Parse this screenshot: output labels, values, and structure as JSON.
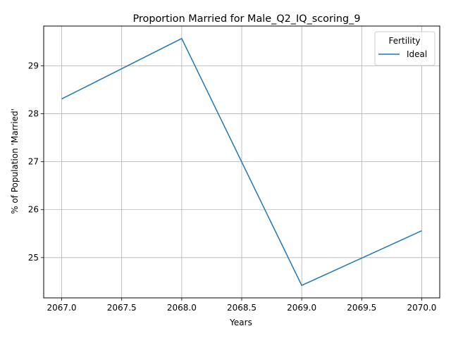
{
  "chart_data": {
    "type": "line",
    "title": "Proportion Married for Male_Q2_IQ_scoring_9",
    "xlabel": "Years",
    "ylabel": "% of Population 'Married'",
    "xlim": [
      2066.85,
      2070.15
    ],
    "ylim": [
      24.16,
      29.83
    ],
    "xticks": [
      2067.0,
      2067.5,
      2068.0,
      2068.5,
      2069.0,
      2069.5,
      2070.0
    ],
    "xtick_labels": [
      "2067.0",
      "2067.5",
      "2068.0",
      "2068.5",
      "2069.0",
      "2069.5",
      "2070.0"
    ],
    "yticks": [
      25,
      26,
      27,
      28,
      29
    ],
    "ytick_labels": [
      "25",
      "26",
      "27",
      "28",
      "29"
    ],
    "grid": true,
    "legend": {
      "title": "Fertility",
      "placement": "top-right"
    },
    "series": [
      {
        "name": "Ideal",
        "color": "#1f77b4",
        "x": [
          2067,
          2068,
          2069,
          2070
        ],
        "y": [
          28.31,
          29.57,
          24.42,
          25.56
        ]
      }
    ]
  }
}
